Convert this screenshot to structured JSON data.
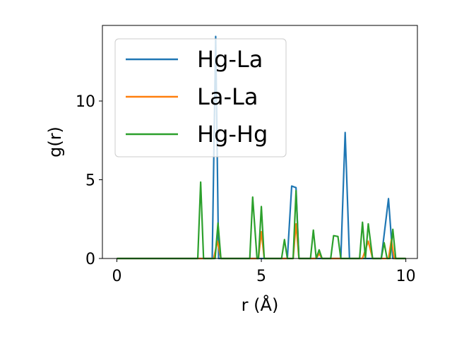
{
  "chart_data": {
    "type": "line",
    "xlabel": "r (Å)",
    "ylabel": "g(r)",
    "xlim": [
      -0.5,
      10.4
    ],
    "ylim": [
      0,
      14.8
    ],
    "xticks": [
      0,
      5,
      10
    ],
    "yticks": [
      0,
      5,
      10
    ],
    "grid": false,
    "legend_position": "upper-left",
    "series": [
      {
        "name": "Hg-La",
        "color": "#1f77b4",
        "points": [
          [
            0,
            0
          ],
          [
            3.3,
            0
          ],
          [
            3.42,
            14.1
          ],
          [
            3.52,
            0
          ],
          [
            5.9,
            0
          ],
          [
            6.05,
            4.6
          ],
          [
            6.2,
            4.5
          ],
          [
            6.3,
            0
          ],
          [
            7.75,
            0
          ],
          [
            7.9,
            8.0
          ],
          [
            8.05,
            0
          ],
          [
            9.15,
            0
          ],
          [
            9.4,
            3.8
          ],
          [
            9.55,
            0
          ],
          [
            10.0,
            0
          ]
        ]
      },
      {
        "name": "La-La",
        "color": "#ff7f0e",
        "points": [
          [
            0,
            0
          ],
          [
            3.35,
            0
          ],
          [
            3.48,
            1.1
          ],
          [
            3.6,
            0
          ],
          [
            4.9,
            0
          ],
          [
            5.0,
            1.7
          ],
          [
            5.1,
            0
          ],
          [
            6.1,
            0
          ],
          [
            6.2,
            2.2
          ],
          [
            6.3,
            0
          ],
          [
            6.9,
            0
          ],
          [
            7.0,
            0.3
          ],
          [
            7.1,
            0
          ],
          [
            8.5,
            0
          ],
          [
            8.7,
            1.1
          ],
          [
            8.85,
            0
          ],
          [
            9.4,
            0
          ],
          [
            9.5,
            1.2
          ],
          [
            9.6,
            0
          ],
          [
            10.0,
            0
          ]
        ]
      },
      {
        "name": "Hg-Hg",
        "color": "#2ca02c",
        "points": [
          [
            0,
            0
          ],
          [
            2.8,
            0
          ],
          [
            2.9,
            4.85
          ],
          [
            3.0,
            0
          ],
          [
            3.4,
            0
          ],
          [
            3.5,
            2.25
          ],
          [
            3.6,
            0
          ],
          [
            4.6,
            0
          ],
          [
            4.7,
            3.9
          ],
          [
            4.85,
            0
          ],
          [
            4.9,
            0
          ],
          [
            5.0,
            3.3
          ],
          [
            5.1,
            0
          ],
          [
            5.7,
            0
          ],
          [
            5.8,
            1.2
          ],
          [
            5.9,
            0
          ],
          [
            6.1,
            0
          ],
          [
            6.2,
            4.3
          ],
          [
            6.3,
            0
          ],
          [
            6.7,
            0
          ],
          [
            6.8,
            1.8
          ],
          [
            6.9,
            0
          ],
          [
            7.0,
            0.55
          ],
          [
            7.1,
            0
          ],
          [
            7.4,
            0
          ],
          [
            7.5,
            1.45
          ],
          [
            7.65,
            1.4
          ],
          [
            7.75,
            0
          ],
          [
            8.4,
            0
          ],
          [
            8.5,
            2.3
          ],
          [
            8.6,
            0
          ],
          [
            8.7,
            2.2
          ],
          [
            8.85,
            0
          ],
          [
            9.15,
            0
          ],
          [
            9.25,
            1.0
          ],
          [
            9.35,
            0
          ],
          [
            9.45,
            0
          ],
          [
            9.55,
            1.85
          ],
          [
            9.65,
            0
          ],
          [
            10.0,
            0
          ]
        ]
      }
    ]
  }
}
